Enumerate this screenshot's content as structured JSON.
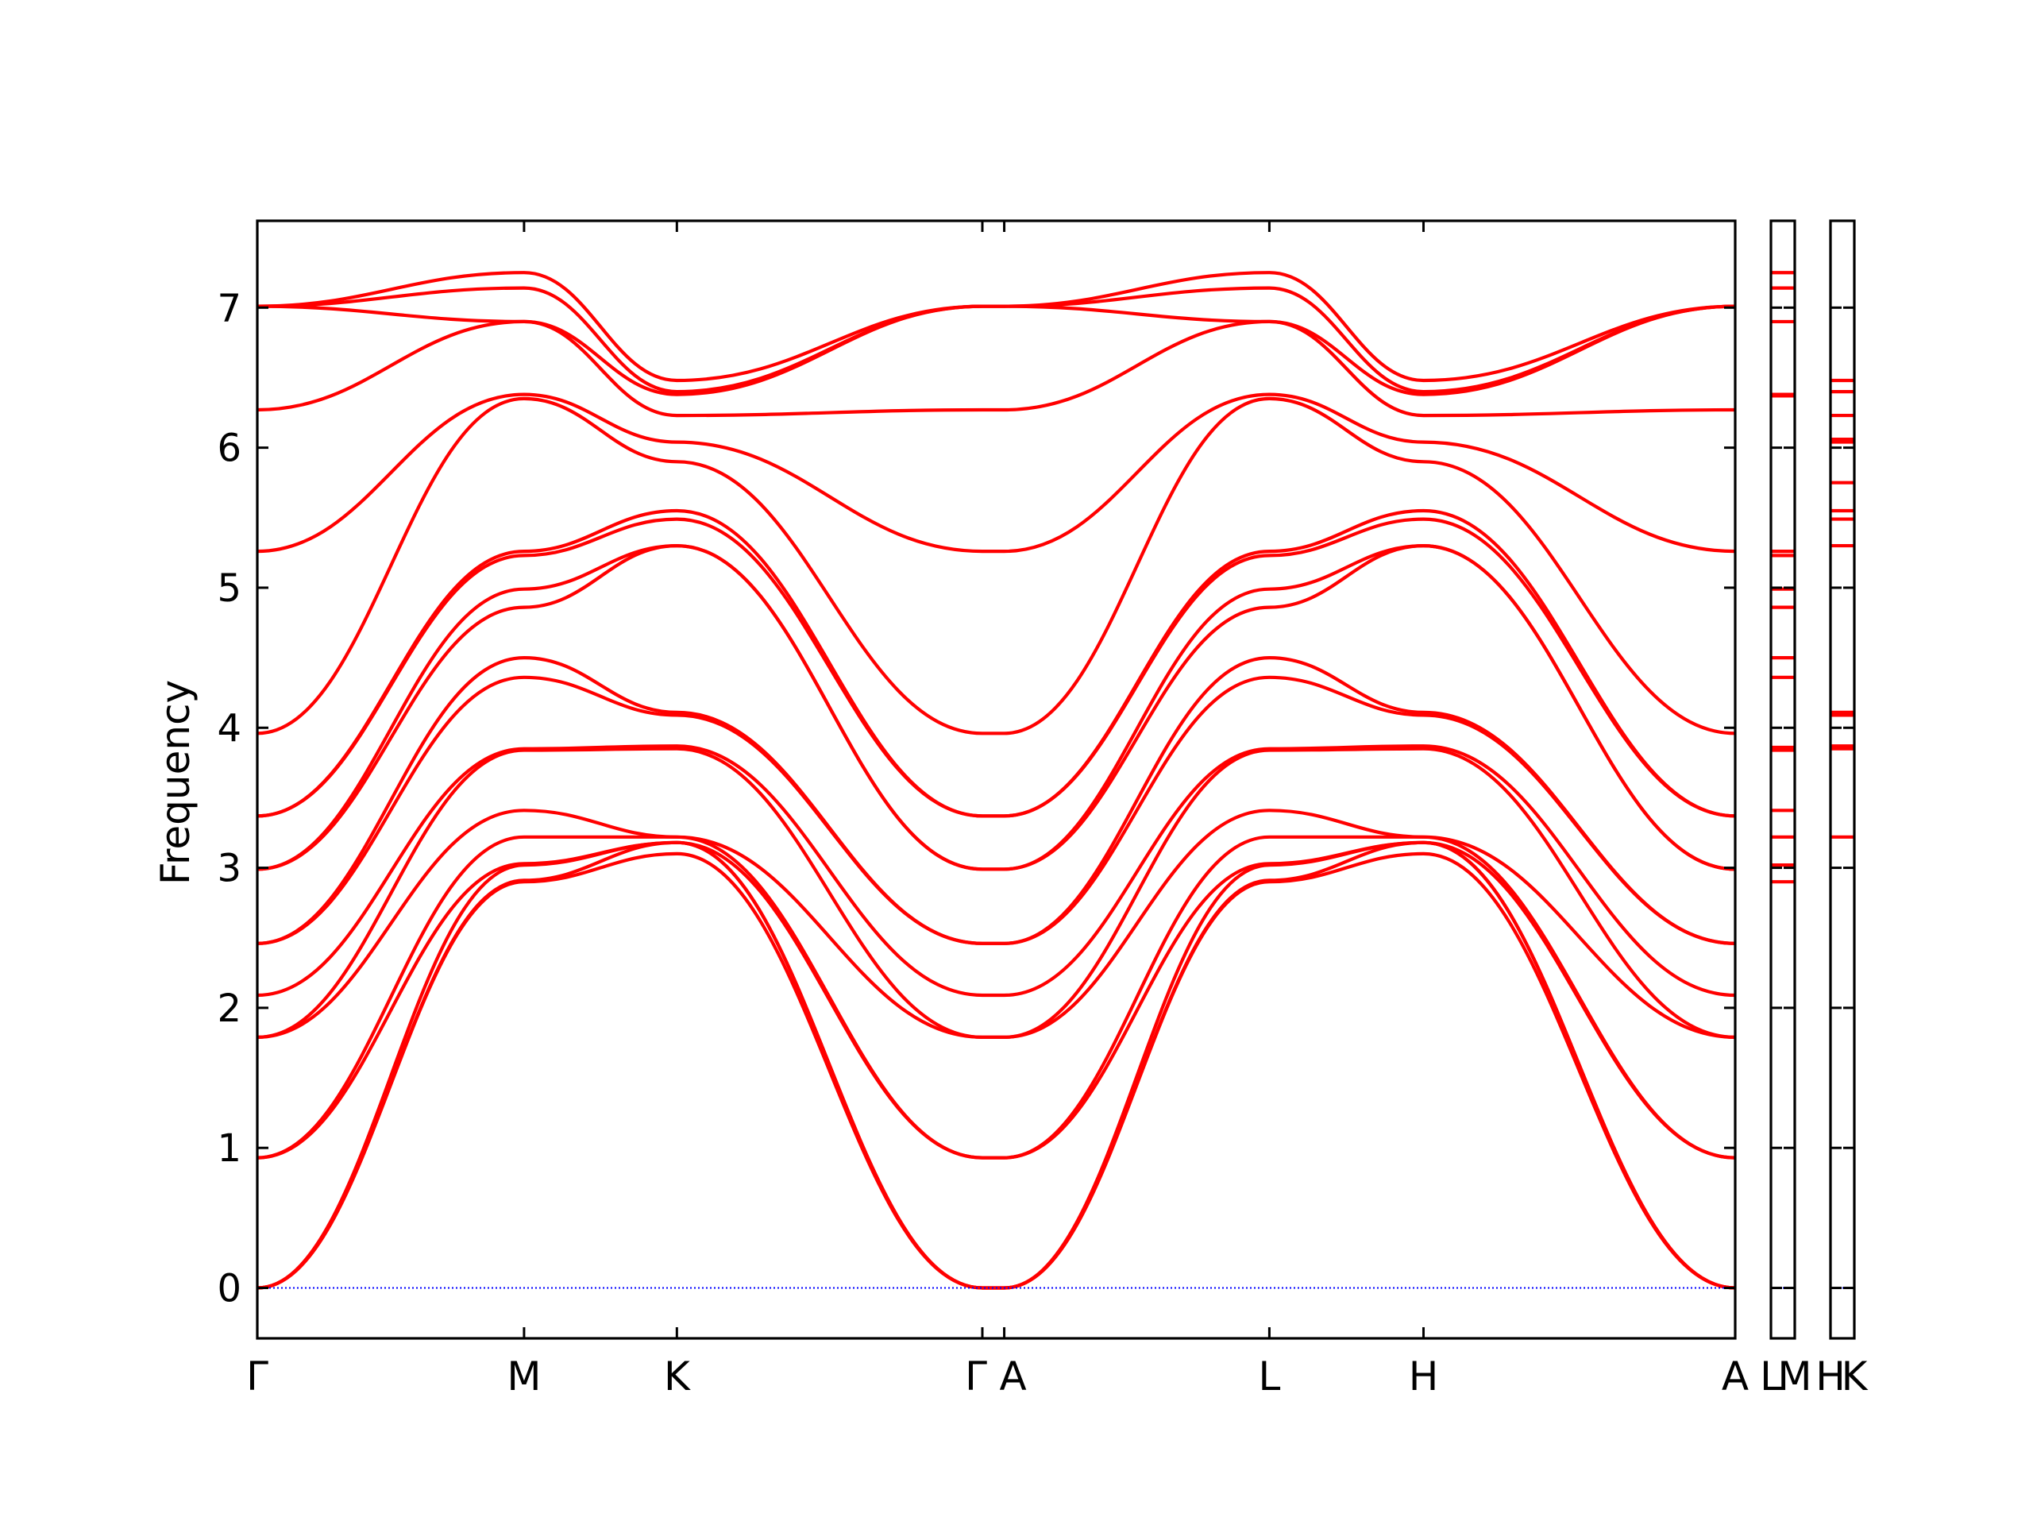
{
  "chart_data": {
    "type": "line",
    "title": "",
    "ylabel": "Frequency",
    "xlabel": "",
    "ylim": [
      -0.36,
      7.62
    ],
    "y_ticks": [
      0,
      1,
      2,
      3,
      4,
      5,
      6,
      7
    ],
    "grid": false,
    "colors": {
      "bands": "#ff0000",
      "zero_line": "#0000ff",
      "axes": "#000000"
    },
    "segments": [
      {
        "id": "main",
        "x_labels": [
          "Γ",
          "M",
          "K",
          "Γ",
          "A",
          "L",
          "H",
          "A"
        ],
        "x_positions": [
          0,
          0.1805,
          0.2839,
          0.4906,
          0.5054,
          0.6848,
          0.7891,
          1.0
        ]
      },
      {
        "id": "lm",
        "x_labels": [
          "L",
          "M"
        ],
        "x_positions": [
          0,
          1
        ]
      },
      {
        "id": "hk",
        "x_labels": [
          "H",
          "K"
        ],
        "x_positions": [
          0,
          1
        ]
      }
    ],
    "bands": {
      "gamma": [
        0,
        0,
        0,
        0.93,
        0.93,
        1.79,
        1.79,
        2.09,
        2.46,
        2.46,
        2.99,
        2.99,
        3.37,
        3.37,
        3.96,
        5.26,
        6.27,
        7.01
      ],
      "M": [
        2.9,
        2.91,
        3.02,
        3.03,
        3.22,
        3.41,
        3.84,
        3.85,
        4.36,
        4.5,
        4.86,
        4.99,
        5.23,
        5.26,
        6.35,
        6.38,
        6.9,
        6.9,
        7.14,
        7.25
      ],
      "K": [
        3.22,
        3.22,
        3.85,
        3.87,
        4.09,
        4.11,
        5.3,
        5.3,
        5.49,
        5.55,
        5.9,
        6.04,
        6.23,
        6.38,
        6.4,
        6.48
      ],
      "lm_levels": [
        2.9,
        3.02,
        3.22,
        3.41,
        3.84,
        3.86,
        4.36,
        4.5,
        4.86,
        4.99,
        5.23,
        5.26,
        6.37,
        6.38,
        6.9,
        7.14,
        7.25
      ],
      "hk_levels": [
        3.22,
        3.85,
        3.87,
        4.09,
        4.11,
        5.3,
        5.49,
        5.55,
        5.75,
        6.04,
        6.06,
        6.23,
        6.4,
        6.48
      ]
    }
  }
}
